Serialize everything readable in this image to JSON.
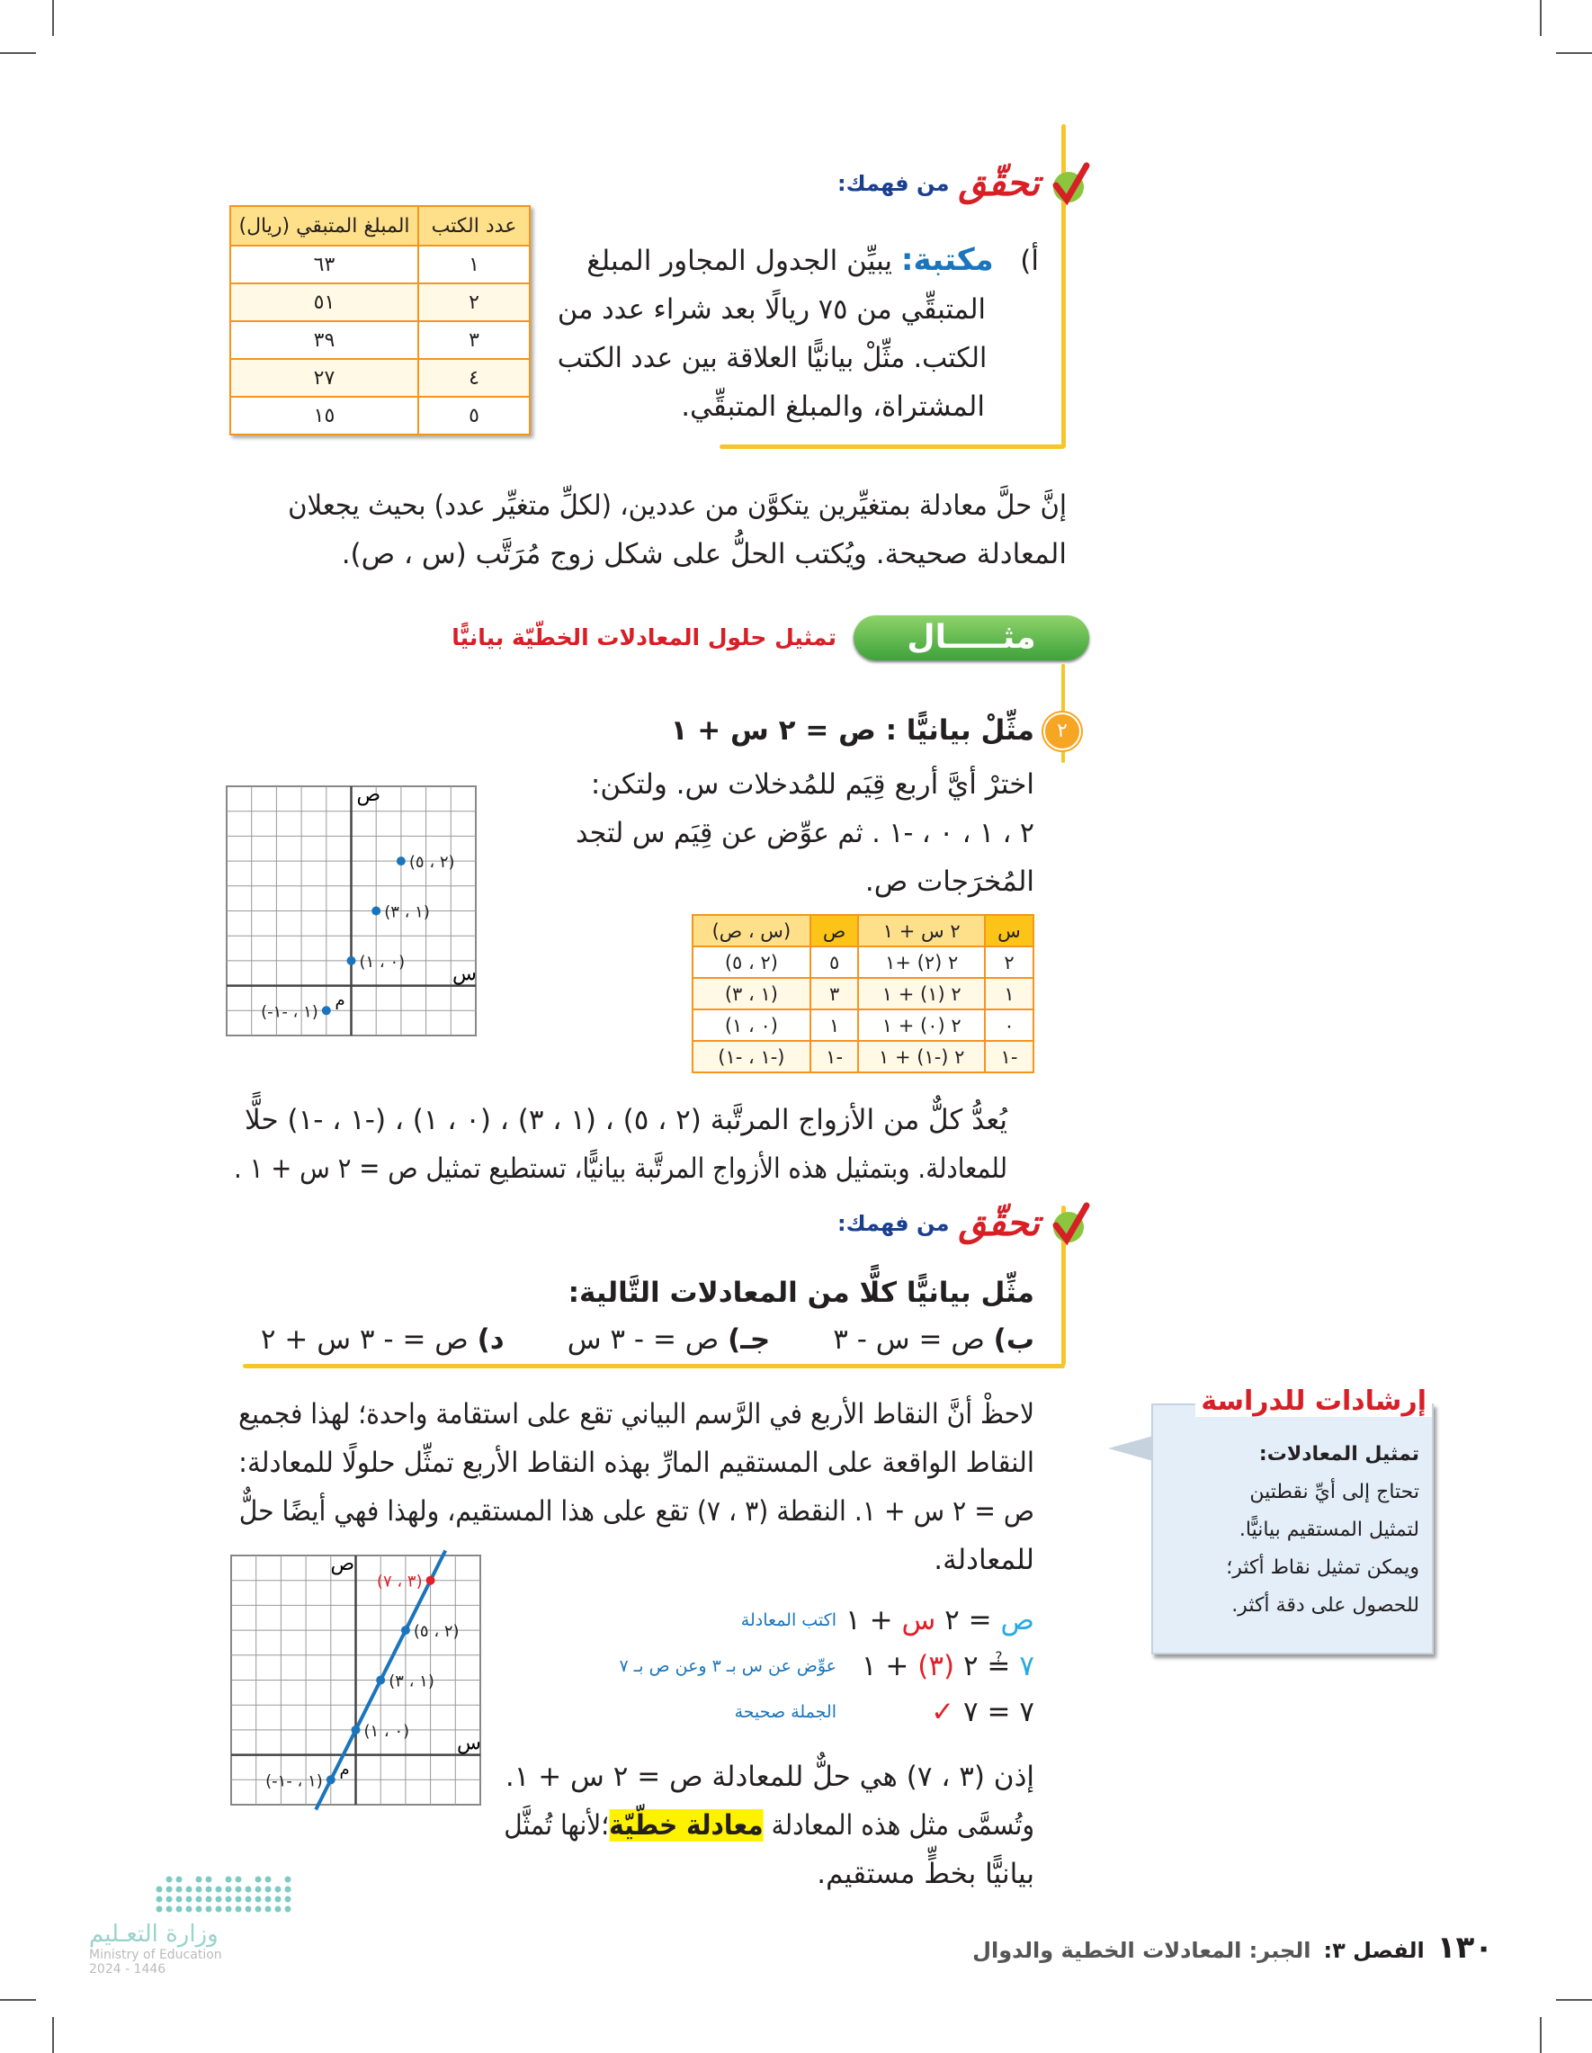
{
  "check1": {
    "title_big": "تحقّق",
    "title_small": "من فهمك:",
    "item_label": "أ)",
    "item_keyword": "مكتبة:",
    "item_lines": [
      "يبيِّن الجدول المجاور المبلغ",
      "المتبقِّي من ٧٥ ريالًا بعد شراء عدد من",
      "الكتب. مثِّلْ بيانيًّا العلاقة بين عدد الكتب",
      "المشتراة، والمبلغ المتبقِّي."
    ],
    "table": {
      "headers": [
        "عدد الكتب",
        "المبلغ المتبقي (ريال)"
      ],
      "rows": [
        [
          "١",
          "٦٣"
        ],
        [
          "٢",
          "٥١"
        ],
        [
          "٣",
          "٣٩"
        ],
        [
          "٤",
          "٢٧"
        ],
        [
          "٥",
          "١٥"
        ]
      ]
    }
  },
  "intro": {
    "lines": [
      "إنَّ حلَّ معادلة بمتغيِّرين يتكوَّن من عددين، (لكلِّ متغيِّر عدد) بحيث يجعلان",
      "المعادلة صحيحة. ويُكتب الحلُّ على شكل زوج مُرَتَّب (س ، ص)."
    ]
  },
  "example": {
    "banner": "مثـــــال",
    "title": "تمثيل حلول المعادلات الخطّيّة بيانيًّا",
    "number": "٢",
    "heading": "مثِّلْ بيانيًّا : ص = ٢ س + ١",
    "lines": [
      "اخترْ أيَّ أربع قِيَم للمُدخلات س. ولتكن:",
      "٢ ، ١ ، ٠ ، -١ . ثم عوِّض عن قِيَم س لتجد",
      "المُخرَجات ص."
    ],
    "table": {
      "headers": [
        "س",
        "٢ س + ١",
        "ص",
        "(س ، ص)"
      ],
      "rows": [
        [
          "٢",
          "٢ (٢) +١",
          "٥",
          "(٢ ، ٥)"
        ],
        [
          "١",
          "٢ (١) + ١",
          "٣",
          "(١ ، ٣)"
        ],
        [
          "٠",
          "٢ (٠) + ١",
          "١",
          "(٠ ، ١)"
        ],
        [
          "-١",
          "٢ (-١) + ١",
          "-١",
          "(-١ ، -١)"
        ]
      ]
    },
    "after_lines": [
      "يُعدُّ كلٌّ من الأزواج المرتَّبة (٢ ، ٥) ، (١ ، ٣) ، (٠ ، ١) ، (-١ ، -١) حلًّا",
      "للمعادلة. وبتمثيل هذه الأزواج المرتَّبة بيانيًّا، تستطيع تمثيل ص = ٢ س + ١ ."
    ]
  },
  "graph1": {
    "x_label": "س",
    "y_label": "ص",
    "origin_label": "م",
    "points": [
      {
        "x": 2,
        "y": 5,
        "label": "(٢ ، ٥)"
      },
      {
        "x": 1,
        "y": 3,
        "label": "(١ ، ٣)"
      },
      {
        "x": 0,
        "y": 1,
        "label": "(٠ ، ١)"
      },
      {
        "x": -1,
        "y": -1,
        "label": "(-١ ، -١)"
      }
    ],
    "x_range": [
      -5,
      5
    ],
    "y_range": [
      -2,
      8
    ],
    "grid": true,
    "point_color": "#1b75bc"
  },
  "check2": {
    "title_big": "تحقّق",
    "title_small": "من فهمك:",
    "prompt": "مثِّل بيانيًّا كلًّا من المعادلات التَّالية:",
    "options": [
      {
        "label": "ب)",
        "eq": "ص = س - ٣"
      },
      {
        "label": "جـ)",
        "eq": "ص = - ٣ س"
      },
      {
        "label": "د)",
        "eq": "ص = - ٣ س + ٢"
      }
    ]
  },
  "notes": {
    "lines": [
      "لاحظْ أنَّ النقاط الأربع في الرَّسم البياني تقع على استقامة واحدة؛ لهذا فجميع",
      "النقاط الواقعة على المستقيم المارِّ بهذه النقاط الأربع تمثِّل حلولًا للمعادلة:",
      "ص = ٢ س + ١. النقطة (٣ ، ٧) تقع على هذا المستقيم، ولهذا فهي أيضًا حلٌّ",
      "للمعادلة."
    ]
  },
  "verify": {
    "rows": [
      {
        "left_a": "ص",
        "left_b": " = ٢ ",
        "left_c": "س",
        "left_d": " + ١",
        "note": "اكتب المعادلة"
      },
      {
        "left_a": "٧",
        "left_b": " ≟ ٢ ",
        "left_c": "(٣)",
        "left_d": " + ١",
        "note": "عوِّض عن س بـ ٣ وعن ص بـ ٧"
      },
      {
        "left_a": "٧",
        "left_b": " = ٧ ",
        "left_c": "✓",
        "left_d": "",
        "note": "الجملة صحيحة"
      }
    ]
  },
  "graph2": {
    "x_label": "س",
    "y_label": "ص",
    "origin_label": "م",
    "points": [
      {
        "x": 3,
        "y": 7,
        "label": "(٣ ، ٧)",
        "highlight": true
      },
      {
        "x": 2,
        "y": 5,
        "label": "(٢ ، ٥)"
      },
      {
        "x": 1,
        "y": 3,
        "label": "(١ ، ٣)"
      },
      {
        "x": 0,
        "y": 1,
        "label": "(٠ ، ١)"
      },
      {
        "x": -1,
        "y": -1,
        "label": "(-١ ، -١)"
      }
    ],
    "line": {
      "slope": 2,
      "intercept": 1
    },
    "x_range": [
      -5,
      5
    ],
    "y_range": [
      -2,
      8
    ],
    "grid": true,
    "line_color": "#1b75bc",
    "highlight_color": "#e0202a"
  },
  "conclusion": {
    "line1": "إذن (٣ ، ٧) هي حلٌّ للمعادلة ص = ٢ س + ١.",
    "line2_a": "وتُسمَّى مثل هذه المعادلة ",
    "line2_term": "معادلة خطّيّة",
    "line2_b": "؛لأنها تُمثَّل",
    "line3": "بيانيًّا بخطٍّ مستقيم."
  },
  "study_tips": {
    "title": "إرشادات للدراسة",
    "subtitle": "تمثيل المعادلات:",
    "lines": [
      "تحتاج إلى أيِّ نقطتين",
      "لتمثيل المستقيم بيانيًّا.",
      "ويمكن تمثيل نقاط أكثر؛",
      "للحصول على دقة أكثر."
    ]
  },
  "footer": {
    "page_number": "١٣٠",
    "chapter": "الفصل ٣:",
    "chapter_title": "الجبر: المعادلات الخطية والدوال",
    "ministry_ar": "وزارة التعـليم",
    "ministry_en": "Ministry of Education",
    "year": "2024 - 1446"
  },
  "colors": {
    "accent_yellow": "#f6c629",
    "table_border": "#f7941d",
    "title_red": "#d71f26",
    "blue": "#1b75bc",
    "green": "#3ea23b"
  }
}
